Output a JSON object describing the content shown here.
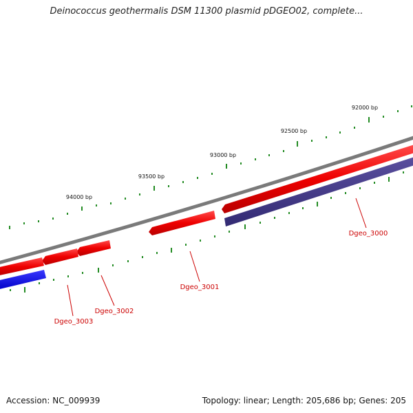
{
  "title": "Deinococcus geothermalis DSM 11300 plasmid pDGEO02, complete...",
  "footer": {
    "accession": "Accession: NC_009939",
    "summary": "Topology: linear; Length: 205,686 bp; Genes: 205"
  },
  "colors": {
    "backbone": "#808080",
    "forward_gene": "#ff0000",
    "reverse_gene_a": "#0000ff",
    "reverse_gene_b": "#483d8b",
    "tick": "#228b22",
    "gene_label": "#cc0000"
  },
  "ruler": {
    "unit": "bp",
    "labels": [
      "92000 bp",
      "92500 bp",
      "93000 bp",
      "93500 bp",
      "94000 bp"
    ]
  },
  "genes": [
    {
      "name": "Dgeo_3000",
      "strand": "reverse"
    },
    {
      "name": "Dgeo_3001",
      "strand": "forward"
    },
    {
      "name": "Dgeo_3002",
      "strand": "forward"
    },
    {
      "name": "Dgeo_3003",
      "strand": "forward"
    }
  ]
}
